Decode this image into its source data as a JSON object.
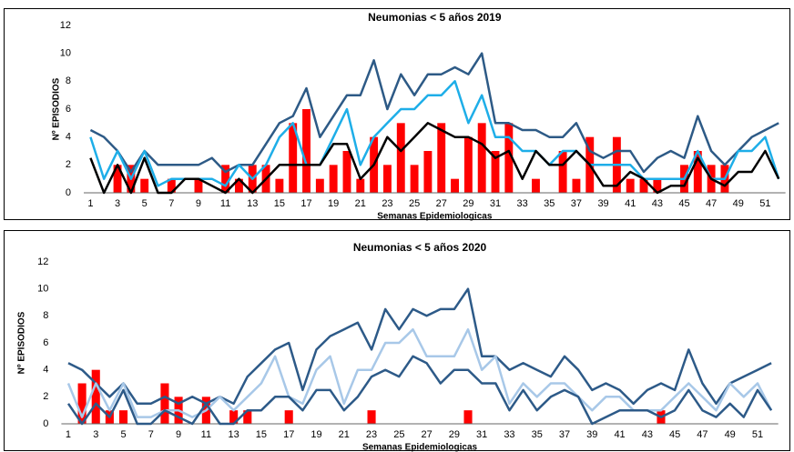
{
  "chart_data": [
    {
      "type": "combo",
      "title": "Neumonias  < 5 años 2019",
      "xlabel": "Semanas Epidemiologicas",
      "ylabel": "Nº EPISODIOS",
      "categories": [
        1,
        null,
        3,
        null,
        5,
        null,
        7,
        null,
        9,
        null,
        11,
        null,
        13,
        null,
        15,
        null,
        17,
        null,
        19,
        null,
        21,
        null,
        23,
        null,
        25,
        null,
        27,
        null,
        29,
        null,
        31,
        null,
        33,
        null,
        35,
        null,
        37,
        null,
        39,
        null,
        41,
        null,
        43,
        null,
        45,
        null,
        47,
        null,
        49,
        null,
        51,
        null
      ],
      "ylim": [
        0,
        12
      ],
      "yticks": [
        0,
        2,
        4,
        6,
        8,
        10,
        12
      ],
      "grid": false,
      "series": [
        {
          "type": "bar",
          "color": "#ff0000",
          "values": [
            0,
            0,
            2,
            2,
            1,
            0,
            1,
            0,
            1,
            0,
            2,
            1,
            2,
            2,
            1,
            5,
            6,
            1,
            2,
            3,
            1,
            4,
            2,
            5,
            2,
            3,
            5,
            1,
            4,
            5,
            3,
            5,
            0,
            1,
            0,
            3,
            1,
            4,
            0,
            4,
            1,
            1,
            1,
            0,
            2,
            3,
            2,
            2,
            0,
            0,
            0,
            0
          ]
        },
        {
          "type": "line",
          "color": "#2d5a86",
          "values": [
            4.5,
            4,
            3,
            1.5,
            3,
            2,
            2,
            2,
            2,
            2.5,
            1.5,
            2,
            2,
            3.5,
            5,
            5.5,
            7.5,
            4,
            5.5,
            7,
            7,
            9.5,
            6,
            8.5,
            7,
            8.5,
            8.5,
            9,
            8.5,
            10,
            5,
            5,
            4.5,
            4.5,
            4,
            4,
            5,
            3,
            2.5,
            3,
            3,
            1.5,
            2.5,
            3,
            2.5,
            5.5,
            3,
            2,
            3,
            4,
            4.5,
            5
          ]
        },
        {
          "type": "line",
          "color": "#1eaee8",
          "values": [
            4,
            1,
            3,
            1,
            3,
            0.5,
            1,
            1,
            1,
            1,
            0.5,
            2,
            1,
            2,
            4,
            5,
            2,
            2,
            4,
            6,
            2,
            4,
            5,
            6,
            6,
            7,
            7,
            8,
            5,
            7,
            4,
            4,
            3,
            3,
            2,
            3,
            3,
            2,
            2,
            2,
            2,
            1,
            1,
            1,
            1,
            3,
            1,
            1,
            3,
            3,
            4,
            1
          ]
        },
        {
          "type": "line",
          "color": "#000000",
          "values": [
            2.5,
            0,
            2,
            0,
            2.5,
            0,
            0,
            1,
            1,
            0.5,
            0,
            1,
            0,
            1,
            2,
            2,
            2,
            2,
            3.5,
            3.5,
            1,
            2,
            4,
            3,
            4,
            5,
            4.5,
            4,
            4,
            3.5,
            2.5,
            3,
            1,
            3,
            2,
            2,
            3,
            2,
            0.5,
            0.5,
            1.5,
            1,
            0,
            0.5,
            0.5,
            2.5,
            1,
            0.5,
            1.5,
            1.5,
            3,
            1
          ]
        }
      ]
    },
    {
      "type": "combo",
      "title": "Neumonias  < 5 años 2020",
      "xlabel": "Semanas Epidemiologicas",
      "ylabel": "Nº EPISODIOS",
      "categories": [
        1,
        null,
        3,
        null,
        5,
        null,
        7,
        null,
        9,
        null,
        11,
        null,
        13,
        null,
        15,
        null,
        17,
        null,
        19,
        null,
        21,
        null,
        23,
        null,
        25,
        null,
        27,
        null,
        29,
        null,
        31,
        null,
        33,
        null,
        35,
        null,
        37,
        null,
        39,
        null,
        41,
        null,
        43,
        null,
        45,
        null,
        47,
        null,
        49,
        null,
        51,
        null
      ],
      "ylim": [
        0,
        12
      ],
      "yticks": [
        0,
        2,
        4,
        6,
        8,
        10,
        12
      ],
      "grid": false,
      "series": [
        {
          "type": "bar",
          "color": "#ff0000",
          "values": [
            0,
            3,
            4,
            1,
            1,
            0,
            0,
            3,
            2,
            0,
            2,
            0,
            1,
            1,
            0,
            0,
            1,
            0,
            0,
            0,
            0,
            0,
            1,
            0,
            0,
            0,
            0,
            0,
            0,
            1,
            0,
            0,
            0,
            0,
            0,
            0,
            0,
            0,
            0,
            0,
            0,
            0,
            0,
            1,
            0,
            0,
            0,
            0,
            0,
            0,
            0,
            0
          ]
        },
        {
          "type": "line",
          "color": "#2d5a88",
          "values": [
            4.5,
            4,
            3,
            2,
            3,
            1.5,
            1.5,
            2,
            1.5,
            2,
            1.5,
            2,
            1.5,
            3.5,
            4.5,
            5.5,
            6,
            2.5,
            5.5,
            6.5,
            7,
            7.5,
            5.5,
            8.5,
            7,
            8.5,
            8,
            8.5,
            8.5,
            10,
            5,
            5,
            4,
            4.5,
            4,
            3.5,
            5,
            4,
            2.5,
            3,
            2.5,
            1.5,
            2.5,
            3,
            2.5,
            5.5,
            3,
            1.5,
            3,
            3.5,
            4,
            4.5
          ]
        },
        {
          "type": "line",
          "color": "#a8c8e8",
          "values": [
            3,
            0.5,
            3,
            1,
            3,
            0.5,
            0.5,
            1,
            1,
            0.5,
            1,
            2,
            1,
            2,
            3,
            5,
            2,
            1.5,
            4,
            5,
            1.5,
            4,
            4,
            6,
            6,
            7,
            5,
            5,
            5,
            7,
            4,
            5,
            1.5,
            3,
            2,
            3,
            3,
            2,
            1,
            2,
            2,
            1,
            1,
            1,
            2,
            3,
            2,
            1,
            3,
            2,
            3,
            1
          ]
        },
        {
          "type": "line",
          "color": "#2d5a88",
          "values": [
            1.5,
            0,
            1.5,
            0.5,
            2.5,
            0,
            0,
            1,
            0.5,
            0,
            1.5,
            0,
            0,
            1,
            1,
            2,
            2,
            1,
            2.5,
            2.5,
            1,
            2,
            3.5,
            4,
            3.5,
            5,
            4.5,
            3,
            4,
            4,
            3,
            3,
            1,
            2.5,
            1,
            2,
            2.5,
            2,
            0,
            0.5,
            1,
            1,
            1,
            0.5,
            1,
            2.5,
            1,
            0.5,
            1.5,
            0.5,
            2.5,
            1
          ]
        }
      ]
    }
  ]
}
